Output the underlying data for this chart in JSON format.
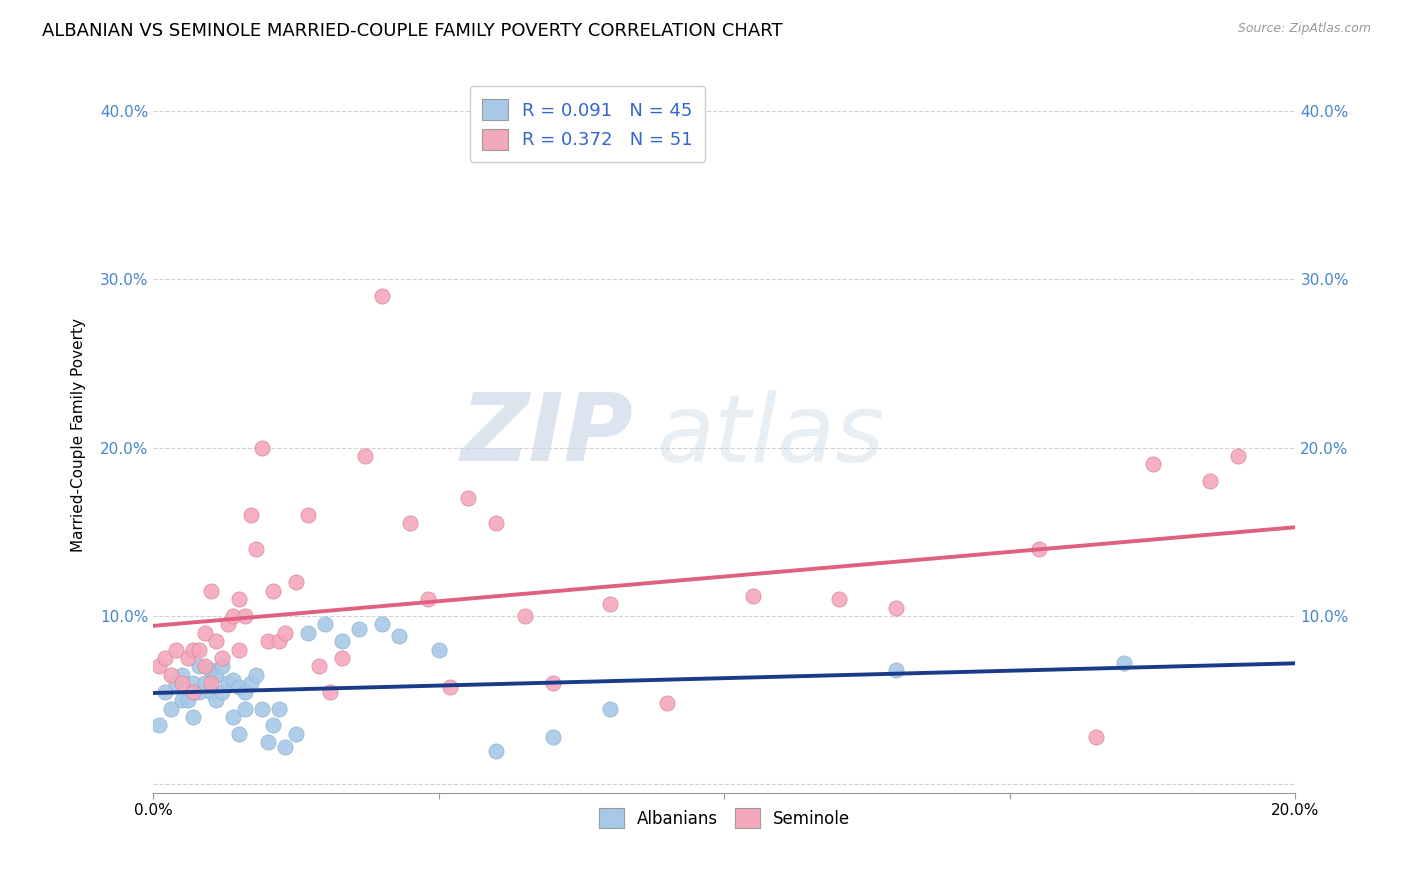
{
  "title": "ALBANIAN VS SEMINOLE MARRIED-COUPLE FAMILY POVERTY CORRELATION CHART",
  "source": "Source: ZipAtlas.com",
  "ylabel_label": "Married-Couple Family Poverty",
  "xlim": [
    0.0,
    0.2
  ],
  "ylim": [
    -0.005,
    0.42
  ],
  "xticks": [
    0.0,
    0.05,
    0.1,
    0.15,
    0.2
  ],
  "xtick_labels": [
    "0.0%",
    "",
    "",
    "",
    "20.0%"
  ],
  "yticks": [
    0.0,
    0.1,
    0.2,
    0.3,
    0.4
  ],
  "ytick_labels": [
    "",
    "10.0%",
    "20.0%",
    "30.0%",
    "40.0%"
  ],
  "legend_R_albanian": "0.091",
  "legend_N_albanian": "45",
  "legend_R_seminole": "0.372",
  "legend_N_seminole": "51",
  "color_albanian": "#a8c8e8",
  "color_seminole": "#f4a8bc",
  "line_color_albanian": "#1a3a8a",
  "line_color_seminole": "#e06080",
  "watermark_zip": "ZIP",
  "watermark_atlas": "atlas",
  "title_fontsize": 13,
  "axis_label_fontsize": 11,
  "tick_fontsize": 11,
  "albanian_x": [
    0.001,
    0.002,
    0.003,
    0.004,
    0.005,
    0.005,
    0.006,
    0.007,
    0.007,
    0.008,
    0.008,
    0.009,
    0.01,
    0.01,
    0.011,
    0.011,
    0.012,
    0.012,
    0.013,
    0.014,
    0.014,
    0.015,
    0.015,
    0.016,
    0.016,
    0.017,
    0.018,
    0.019,
    0.02,
    0.021,
    0.022,
    0.023,
    0.025,
    0.027,
    0.03,
    0.033,
    0.036,
    0.04,
    0.043,
    0.05,
    0.06,
    0.07,
    0.08,
    0.13,
    0.17
  ],
  "albanian_y": [
    0.035,
    0.055,
    0.045,
    0.06,
    0.05,
    0.065,
    0.05,
    0.06,
    0.04,
    0.055,
    0.07,
    0.06,
    0.055,
    0.068,
    0.05,
    0.065,
    0.07,
    0.055,
    0.06,
    0.062,
    0.04,
    0.058,
    0.03,
    0.055,
    0.045,
    0.06,
    0.065,
    0.045,
    0.025,
    0.035,
    0.045,
    0.022,
    0.03,
    0.09,
    0.095,
    0.085,
    0.092,
    0.095,
    0.088,
    0.08,
    0.02,
    0.028,
    0.045,
    0.068,
    0.072
  ],
  "seminole_x": [
    0.001,
    0.002,
    0.003,
    0.004,
    0.005,
    0.006,
    0.007,
    0.007,
    0.008,
    0.009,
    0.009,
    0.01,
    0.01,
    0.011,
    0.012,
    0.013,
    0.014,
    0.015,
    0.015,
    0.016,
    0.017,
    0.018,
    0.019,
    0.02,
    0.021,
    0.022,
    0.023,
    0.025,
    0.027,
    0.029,
    0.031,
    0.033,
    0.037,
    0.04,
    0.045,
    0.048,
    0.052,
    0.055,
    0.06,
    0.065,
    0.07,
    0.08,
    0.09,
    0.105,
    0.12,
    0.13,
    0.155,
    0.165,
    0.175,
    0.185,
    0.19
  ],
  "seminole_y": [
    0.07,
    0.075,
    0.065,
    0.08,
    0.06,
    0.075,
    0.08,
    0.055,
    0.08,
    0.07,
    0.09,
    0.06,
    0.115,
    0.085,
    0.075,
    0.095,
    0.1,
    0.08,
    0.11,
    0.1,
    0.16,
    0.14,
    0.2,
    0.085,
    0.115,
    0.085,
    0.09,
    0.12,
    0.16,
    0.07,
    0.055,
    0.075,
    0.195,
    0.29,
    0.155,
    0.11,
    0.058,
    0.17,
    0.155,
    0.1,
    0.06,
    0.107,
    0.048,
    0.112,
    0.11,
    0.105,
    0.14,
    0.028,
    0.19,
    0.18,
    0.195
  ]
}
